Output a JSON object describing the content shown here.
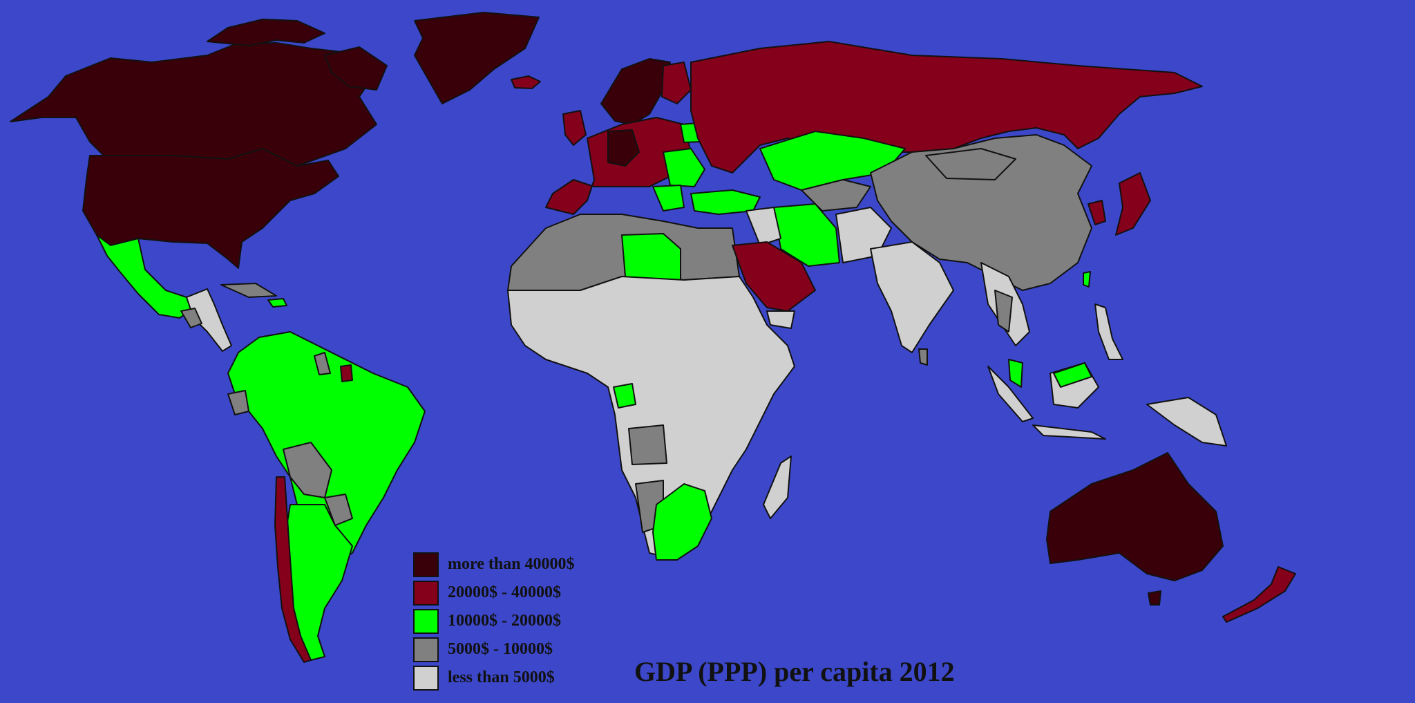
{
  "title": "GDP (PPP) per capita 2012",
  "colors": {
    "ocean": "#3c48c9",
    "tier_1": "#3a0009",
    "tier_2": "#85001a",
    "tier_3": "#00ff00",
    "tier_4": "#808080",
    "tier_5": "#d0d0d0"
  },
  "legend": [
    {
      "label": "more than 40000$",
      "color": "#3a0009"
    },
    {
      "label": "20000$ - 40000$",
      "color": "#85001a"
    },
    {
      "label": "10000$ - 20000$",
      "color": "#00ff00"
    },
    {
      "label": "5000$ - 10000$",
      "color": "#808080"
    },
    {
      "label": "less than 5000$",
      "color": "#d0d0d0"
    }
  ]
}
